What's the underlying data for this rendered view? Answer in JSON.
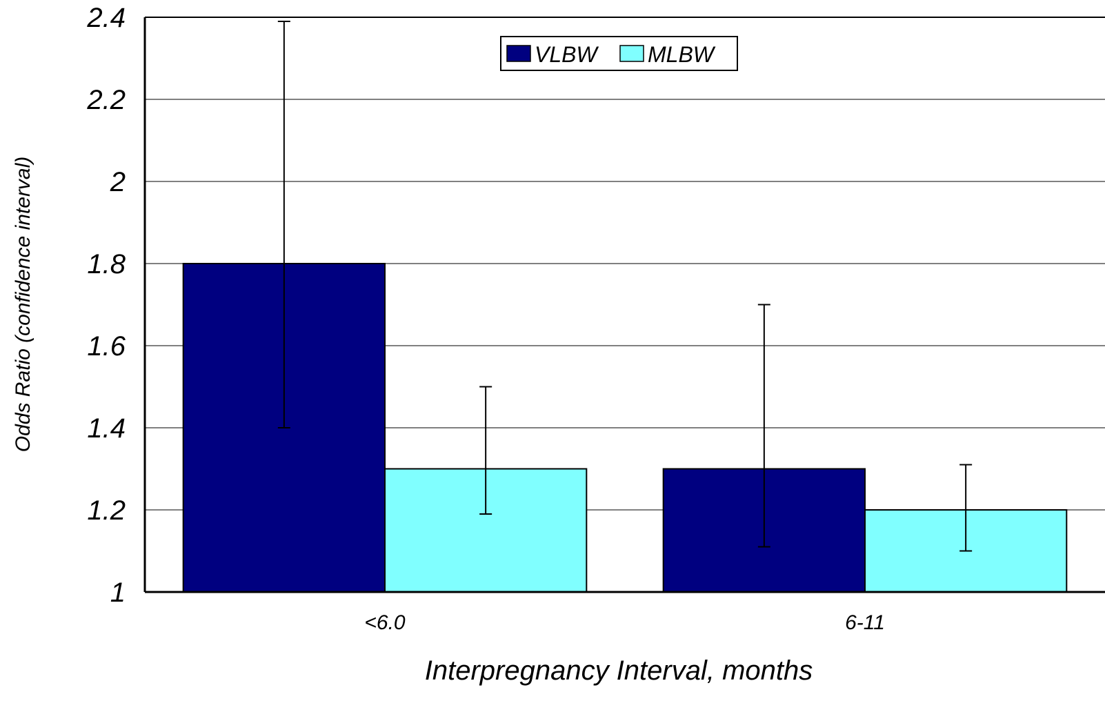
{
  "chart_data": {
    "type": "bar",
    "title": "",
    "xlabel": "Interpregnancy Interval, months",
    "ylabel": "Odds Ratio (confidence interval)",
    "categories": [
      "<6.0",
      "6-11"
    ],
    "series": [
      {
        "name": "VLBW",
        "color": "#000080",
        "values": [
          1.8,
          1.3
        ],
        "ci_low": [
          1.4,
          1.11
        ],
        "ci_high": [
          2.39,
          1.7
        ]
      },
      {
        "name": "MLBW",
        "color": "#80ffff",
        "values": [
          1.3,
          1.2
        ],
        "ci_low": [
          1.19,
          1.1
        ],
        "ci_high": [
          1.5,
          1.31
        ]
      }
    ],
    "ylim": [
      1,
      2.4
    ],
    "yticks": [
      "1",
      "1.2",
      "1.4",
      "1.6",
      "1.8",
      "2",
      "2.2",
      "2.4"
    ],
    "grid": true,
    "legend_position": "top-center"
  }
}
